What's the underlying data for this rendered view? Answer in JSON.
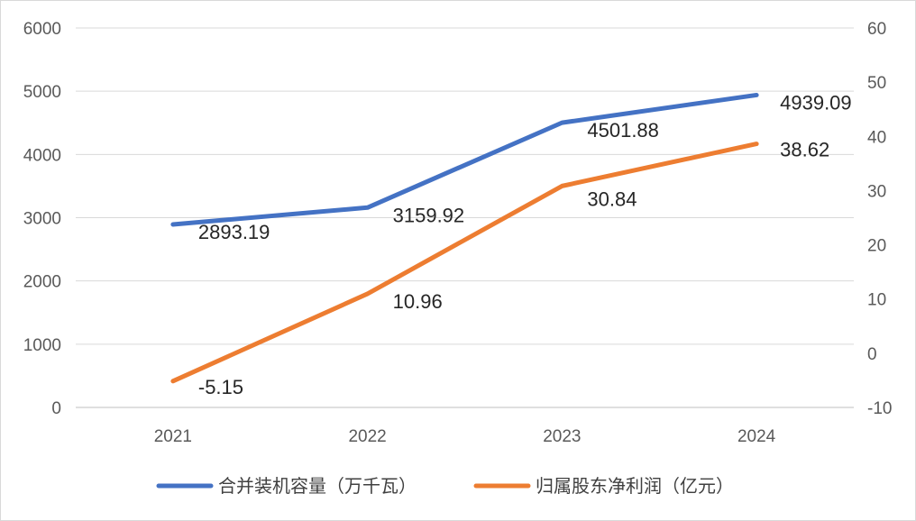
{
  "chart_data": {
    "type": "line",
    "title": "",
    "categories": [
      "2021",
      "2022",
      "2023",
      "2024"
    ],
    "y_left": {
      "min": 0,
      "max": 6000,
      "step": 1000,
      "ticks": [
        "0",
        "1000",
        "2000",
        "3000",
        "4000",
        "5000",
        "6000"
      ]
    },
    "y_right": {
      "min": -10,
      "max": 60,
      "step": 10,
      "ticks": [
        "-10",
        "0",
        "10",
        "20",
        "30",
        "40",
        "50",
        "60"
      ]
    },
    "grid": true,
    "legend_position": "bottom",
    "series": [
      {
        "name": "合并装机容量（万千瓦）",
        "axis": "left",
        "color": "#4472C4",
        "values": [
          2893.19,
          3159.92,
          4501.88,
          4939.09
        ],
        "labels": [
          "2893.19",
          "3159.92",
          "4501.88",
          "4939.09"
        ]
      },
      {
        "name": "归属股东净利润（亿元）",
        "axis": "right",
        "color": "#ED7D31",
        "values": [
          -5.15,
          10.96,
          30.84,
          38.62
        ],
        "labels": [
          "-5.15",
          "10.96",
          "30.84",
          "38.62"
        ]
      }
    ]
  }
}
